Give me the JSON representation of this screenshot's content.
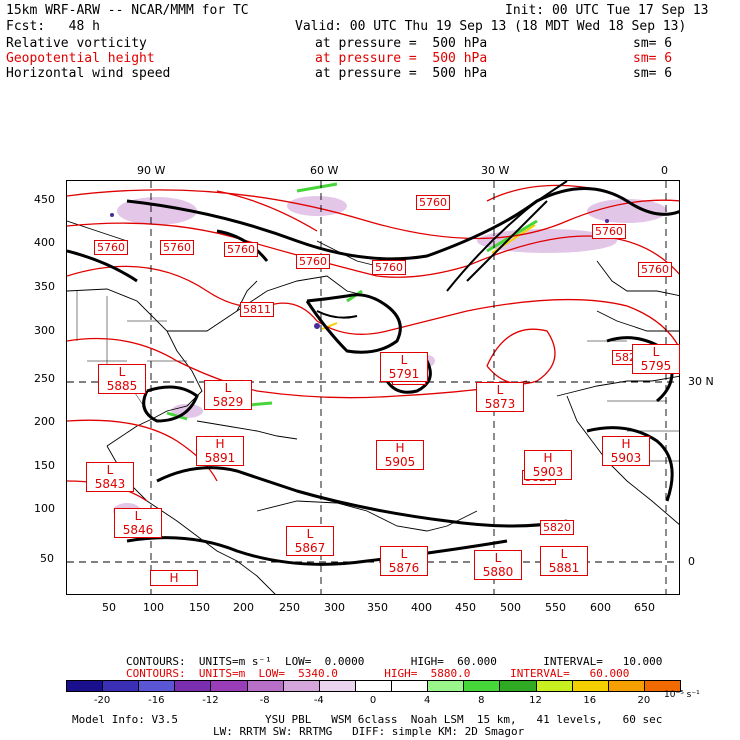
{
  "header": {
    "model": "15km WRF-ARW -- NCAR/MMM for TC",
    "init": "Init: 00 UTC Tue 17 Sep 13",
    "fcst": "Fcst:   48 h",
    "valid": "Valid: 00 UTC Thu 19 Sep 13 (18 MDT Wed 18 Sep 13)",
    "fields": [
      {
        "name": "Relative vorticity",
        "pressure": "at pressure =  500 hPa",
        "sm": "sm= 6",
        "color": "#000000"
      },
      {
        "name": "Geopotential height",
        "pressure": "at pressure =  500 hPa",
        "sm": "sm= 6",
        "color": "#e00000"
      },
      {
        "name": "Horizontal wind speed",
        "pressure": "at pressure =  500 hPa",
        "sm": "sm= 6",
        "color": "#000000"
      }
    ]
  },
  "axes": {
    "top_lon": [
      "90 W",
      "60 W",
      "30 W",
      "0"
    ],
    "right_lat": [
      "30 N",
      "0"
    ],
    "x_ticks": [
      "50",
      "100",
      "150",
      "200",
      "250",
      "300",
      "350",
      "400",
      "450",
      "500",
      "550",
      "600",
      "650"
    ],
    "y_ticks": [
      "50",
      "100",
      "150",
      "200",
      "250",
      "300",
      "350",
      "400",
      "450"
    ]
  },
  "height_labels": [
    {
      "text": "5760"
    },
    {
      "text": "5760"
    },
    {
      "text": "5760"
    },
    {
      "text": "5760"
    },
    {
      "text": "5760"
    },
    {
      "text": "5760"
    },
    {
      "text": "5760"
    },
    {
      "text": "5811"
    },
    {
      "text": "5820"
    },
    {
      "text": "5820"
    },
    {
      "text": "5820"
    },
    {
      "text": "5820"
    },
    {
      "text": "5760"
    }
  ],
  "systems": [
    {
      "letter": "L",
      "value": "5885"
    },
    {
      "letter": "L",
      "value": "5829"
    },
    {
      "letter": "H",
      "value": "5891"
    },
    {
      "letter": "L",
      "value": "5843"
    },
    {
      "letter": "L",
      "value": "5846"
    },
    {
      "letter": "L",
      "value": "5867"
    },
    {
      "letter": "H",
      "value": "5905"
    },
    {
      "letter": "L",
      "value": "5873"
    },
    {
      "letter": "H",
      "value": "5903"
    },
    {
      "letter": "H",
      "value": "5903"
    },
    {
      "letter": "L",
      "value": "5876"
    },
    {
      "letter": "L",
      "value": "5880"
    },
    {
      "letter": "L",
      "value": "5881"
    },
    {
      "letter": "L",
      "value": "5791"
    },
    {
      "letter": "L",
      "value": "5795"
    },
    {
      "letter": "H",
      "value": ""
    }
  ],
  "contours": {
    "line1": "CONTOURS:  UNITS=m s⁻¹  LOW=  0.0000       HIGH=  60.000       INTERVAL=   10.000",
    "line2": "CONTOURS:  UNITS=m  LOW=  5340.0       HIGH=  5880.0      INTERVAL=   60.000"
  },
  "colorbar": {
    "colors": [
      "#1a0f8c",
      "#3b2fb5",
      "#5a56d6",
      "#7a2fb0",
      "#9a3db8",
      "#b86fc7",
      "#d4a6dc",
      "#ead3ef",
      "#ffffff",
      "#ffffff",
      "#9af58a",
      "#47d63a",
      "#2faa22",
      "#c8f020",
      "#f5d000",
      "#f5a000",
      "#f06a00"
    ],
    "ticks": [
      "-20",
      "-16",
      "-12",
      "-8",
      "-4",
      "0",
      "4",
      "8",
      "12",
      "16",
      "20"
    ],
    "unit": "10⁻⁵ s⁻¹"
  },
  "footer": {
    "model_info": "Model Info: V3.5",
    "line1": "YSU PBL   WSM 6class  Noah LSM  15 km,   41 levels,   60 sec",
    "line2": "LW: RRTM SW: RRTMG   DIFF: simple KM: 2D Smagor"
  }
}
